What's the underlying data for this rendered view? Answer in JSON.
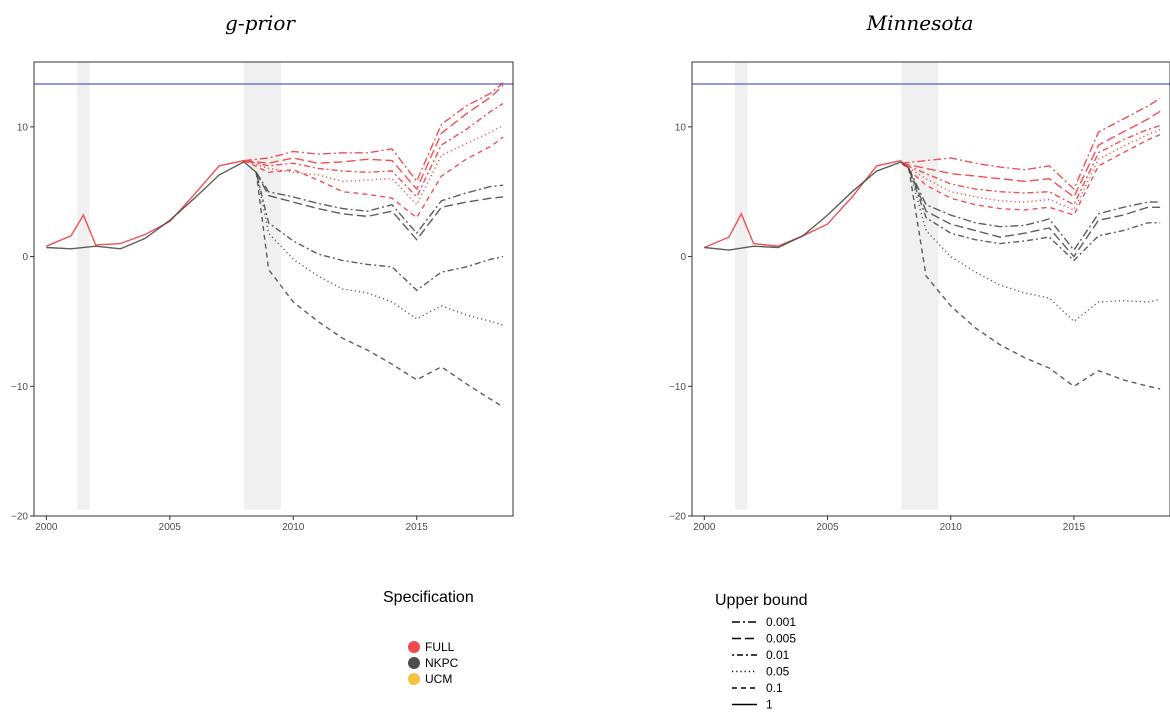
{
  "chart_data": [
    {
      "type": "line",
      "title": "g-prior",
      "xlabel": "",
      "ylabel": "",
      "xlim": [
        1999.5,
        2018.9
      ],
      "ylim": [
        -20,
        15
      ],
      "xticks": [
        2000,
        2005,
        2010,
        2015
      ],
      "yticks": [
        -20,
        -10,
        0,
        10
      ],
      "grid": false,
      "hline": {
        "y": 13.3,
        "color": "#3333aa"
      },
      "shaded_periods": [
        [
          2001.25,
          2001.75
        ],
        [
          2008.0,
          2009.5
        ]
      ],
      "shaded_ymin": -19.5,
      "series": [
        {
          "spec": "FULL",
          "bound": "1",
          "x": [
            2000,
            2001,
            2001.5,
            2002,
            2003,
            2004,
            2005,
            2006,
            2007,
            2008
          ],
          "y": [
            0.8,
            1.6,
            3.2,
            0.9,
            1.0,
            1.7,
            2.7,
            4.8,
            7.0,
            7.4
          ]
        },
        {
          "spec": "FULL",
          "bound": "0.1",
          "x": [
            2008,
            2009,
            2010,
            2011,
            2012,
            2013,
            2014,
            2015,
            2016,
            2017,
            2018,
            2018.5
          ],
          "y": [
            7.4,
            6.5,
            6.7,
            5.9,
            5.0,
            4.8,
            4.5,
            3.0,
            6.2,
            7.5,
            8.5,
            9.2
          ]
        },
        {
          "spec": "FULL",
          "bound": "0.05",
          "x": [
            2008,
            2009,
            2010,
            2011,
            2012,
            2013,
            2014,
            2015,
            2016,
            2017,
            2018,
            2018.5
          ],
          "y": [
            7.4,
            6.8,
            6.5,
            6.3,
            5.8,
            5.9,
            6.0,
            4.0,
            7.8,
            8.7,
            9.6,
            10.1
          ]
        },
        {
          "spec": "FULL",
          "bound": "0.01",
          "x": [
            2008,
            2009,
            2010,
            2011,
            2012,
            2013,
            2014,
            2015,
            2016,
            2017,
            2018,
            2018.5
          ],
          "y": [
            7.4,
            7.0,
            7.2,
            6.8,
            6.6,
            6.5,
            6.6,
            4.6,
            8.6,
            9.8,
            11.2,
            11.8
          ]
        },
        {
          "spec": "FULL",
          "bound": "0.005",
          "x": [
            2008,
            2009,
            2010,
            2011,
            2012,
            2013,
            2014,
            2015,
            2016,
            2017,
            2018,
            2018.5
          ],
          "y": [
            7.4,
            7.2,
            7.6,
            7.2,
            7.3,
            7.5,
            7.4,
            5.2,
            9.5,
            11.0,
            12.3,
            13.2
          ]
        },
        {
          "spec": "FULL",
          "bound": "0.001",
          "x": [
            2008,
            2009,
            2010,
            2011,
            2012,
            2013,
            2014,
            2015,
            2016,
            2017,
            2018,
            2018.5
          ],
          "y": [
            7.4,
            7.6,
            8.1,
            7.9,
            8.0,
            8.0,
            8.3,
            5.8,
            10.2,
            11.6,
            12.6,
            13.4
          ]
        },
        {
          "spec": "NKPC",
          "bound": "1",
          "x": [
            2000,
            2001,
            2002,
            2003,
            2004,
            2005,
            2006,
            2007,
            2008,
            2008.5
          ],
          "y": [
            0.7,
            0.6,
            0.8,
            0.6,
            1.4,
            2.8,
            4.5,
            6.3,
            7.3,
            6.5
          ]
        },
        {
          "spec": "NKPC",
          "bound": "0.1",
          "x": [
            2008.5,
            2009,
            2010,
            2011,
            2012,
            2013,
            2014,
            2015,
            2016,
            2017,
            2018,
            2018.5
          ],
          "y": [
            6.5,
            -1.0,
            -3.5,
            -5.0,
            -6.3,
            -7.2,
            -8.3,
            -9.5,
            -8.5,
            -9.8,
            -11.0,
            -11.6
          ]
        },
        {
          "spec": "NKPC",
          "bound": "0.05",
          "x": [
            2008.5,
            2009,
            2010,
            2011,
            2012,
            2013,
            2014,
            2015,
            2016,
            2017,
            2018,
            2018.5
          ],
          "y": [
            6.5,
            1.8,
            -0.2,
            -1.5,
            -2.5,
            -2.8,
            -3.5,
            -4.8,
            -3.8,
            -4.5,
            -5.0,
            -5.3
          ]
        },
        {
          "spec": "NKPC",
          "bound": "0.01",
          "x": [
            2008.5,
            2009,
            2010,
            2011,
            2012,
            2013,
            2014,
            2015,
            2016,
            2017,
            2018,
            2018.5
          ],
          "y": [
            6.5,
            2.6,
            1.2,
            0.2,
            -0.3,
            -0.6,
            -0.8,
            -2.6,
            -1.2,
            -0.8,
            -0.2,
            0.0
          ]
        },
        {
          "spec": "NKPC",
          "bound": "0.005",
          "x": [
            2008.5,
            2009,
            2010,
            2011,
            2012,
            2013,
            2014,
            2015,
            2016,
            2017,
            2018,
            2018.5
          ],
          "y": [
            6.5,
            4.7,
            4.2,
            3.7,
            3.3,
            3.1,
            3.5,
            1.3,
            3.8,
            4.2,
            4.5,
            4.6
          ]
        },
        {
          "spec": "NKPC",
          "bound": "0.001",
          "x": [
            2008.5,
            2009,
            2010,
            2011,
            2012,
            2013,
            2014,
            2015,
            2016,
            2017,
            2018,
            2018.5
          ],
          "y": [
            6.5,
            5.0,
            4.6,
            4.1,
            3.7,
            3.5,
            4.0,
            1.8,
            4.3,
            4.9,
            5.4,
            5.5
          ]
        }
      ]
    },
    {
      "type": "line",
      "title": "Minnesota",
      "xlabel": "",
      "ylabel": "",
      "xlim": [
        1999.5,
        2018.9
      ],
      "ylim": [
        -20,
        15
      ],
      "xticks": [
        2000,
        2005,
        2010,
        2015
      ],
      "yticks": [
        -20,
        -10,
        0,
        10
      ],
      "grid": false,
      "hline": {
        "y": 13.3,
        "color": "#3333aa"
      },
      "shaded_periods": [
        [
          2001.25,
          2001.75
        ],
        [
          2008.0,
          2009.5
        ]
      ],
      "shaded_ymin": -19.5,
      "series": [
        {
          "spec": "FULL",
          "bound": "1",
          "x": [
            2000,
            2001,
            2001.5,
            2002,
            2003,
            2004,
            2005,
            2006,
            2007,
            2008
          ],
          "y": [
            0.7,
            1.5,
            3.3,
            1.0,
            0.8,
            1.6,
            2.5,
            4.6,
            7.0,
            7.4
          ]
        },
        {
          "spec": "FULL",
          "bound": "0.1",
          "x": [
            2008,
            2009,
            2010,
            2011,
            2012,
            2013,
            2014,
            2015,
            2016,
            2017,
            2018,
            2018.5
          ],
          "y": [
            7.2,
            5.5,
            4.5,
            4.0,
            3.7,
            3.6,
            3.8,
            3.2,
            7.0,
            8.0,
            9.0,
            9.4
          ]
        },
        {
          "spec": "FULL",
          "bound": "0.05",
          "x": [
            2008,
            2009,
            2010,
            2011,
            2012,
            2013,
            2014,
            2015,
            2016,
            2017,
            2018,
            2018.5
          ],
          "y": [
            7.2,
            6.0,
            5.0,
            4.6,
            4.3,
            4.2,
            4.4,
            3.6,
            7.5,
            8.5,
            9.4,
            9.8
          ]
        },
        {
          "spec": "FULL",
          "bound": "0.01",
          "x": [
            2008,
            2009,
            2010,
            2011,
            2012,
            2013,
            2014,
            2015,
            2016,
            2017,
            2018,
            2018.5
          ],
          "y": [
            7.2,
            6.4,
            5.6,
            5.2,
            5.0,
            4.9,
            5.0,
            4.0,
            8.0,
            9.0,
            9.8,
            10.1
          ]
        },
        {
          "spec": "FULL",
          "bound": "0.005",
          "x": [
            2008,
            2009,
            2010,
            2011,
            2012,
            2013,
            2014,
            2015,
            2016,
            2017,
            2018,
            2018.5
          ],
          "y": [
            7.2,
            6.8,
            6.4,
            6.2,
            6.0,
            5.8,
            6.0,
            4.6,
            8.6,
            9.6,
            10.6,
            11.2
          ]
        },
        {
          "spec": "FULL",
          "bound": "0.001",
          "x": [
            2008,
            2009,
            2010,
            2011,
            2012,
            2013,
            2014,
            2015,
            2016,
            2017,
            2018,
            2018.5
          ],
          "y": [
            7.2,
            7.4,
            7.6,
            7.2,
            6.9,
            6.7,
            7.0,
            5.2,
            9.6,
            10.6,
            11.6,
            12.2
          ]
        },
        {
          "spec": "NKPC",
          "bound": "1",
          "x": [
            2000,
            2001,
            2002,
            2003,
            2004,
            2005,
            2006,
            2007,
            2008,
            2008.3
          ],
          "y": [
            0.7,
            0.5,
            0.8,
            0.7,
            1.6,
            3.2,
            5.0,
            6.6,
            7.3,
            6.8
          ]
        },
        {
          "spec": "NKPC",
          "bound": "0.1",
          "x": [
            2008.3,
            2009,
            2010,
            2011,
            2012,
            2013,
            2014,
            2015,
            2016,
            2017,
            2018,
            2018.5
          ],
          "y": [
            6.8,
            -1.5,
            -3.8,
            -5.5,
            -6.8,
            -7.8,
            -8.6,
            -10.0,
            -8.8,
            -9.5,
            -10.0,
            -10.2
          ]
        },
        {
          "spec": "NKPC",
          "bound": "0.05",
          "x": [
            2008.3,
            2009,
            2010,
            2011,
            2012,
            2013,
            2014,
            2015,
            2016,
            2017,
            2018,
            2018.5
          ],
          "y": [
            6.8,
            2.0,
            0.0,
            -1.2,
            -2.2,
            -2.8,
            -3.2,
            -5.0,
            -3.5,
            -3.4,
            -3.5,
            -3.3
          ]
        },
        {
          "spec": "NKPC",
          "bound": "0.01",
          "x": [
            2008.3,
            2009,
            2010,
            2011,
            2012,
            2013,
            2014,
            2015,
            2016,
            2017,
            2018,
            2018.5
          ],
          "y": [
            6.8,
            3.0,
            1.8,
            1.3,
            1.0,
            1.2,
            1.5,
            -0.3,
            1.6,
            2.0,
            2.6,
            2.6
          ]
        },
        {
          "spec": "NKPC",
          "bound": "0.005",
          "x": [
            2008.3,
            2009,
            2010,
            2011,
            2012,
            2013,
            2014,
            2015,
            2016,
            2017,
            2018,
            2018.5
          ],
          "y": [
            6.8,
            3.5,
            2.5,
            2.0,
            1.5,
            1.8,
            2.2,
            0.0,
            2.8,
            3.2,
            3.8,
            3.8
          ]
        },
        {
          "spec": "NKPC",
          "bound": "0.001",
          "x": [
            2008.3,
            2009,
            2010,
            2011,
            2012,
            2013,
            2014,
            2015,
            2016,
            2017,
            2018,
            2018.5
          ],
          "y": [
            6.8,
            4.0,
            3.2,
            2.6,
            2.3,
            2.4,
            2.9,
            0.5,
            3.3,
            3.8,
            4.2,
            4.2
          ]
        }
      ]
    }
  ],
  "legend_spec": {
    "title": "Specification",
    "items": [
      {
        "label": "FULL",
        "color": "#f0484b"
      },
      {
        "label": "NKPC",
        "color": "#4d4d4d"
      },
      {
        "label": "UCM",
        "color": "#f5c242"
      }
    ]
  },
  "legend_bound": {
    "title": "Upper bound",
    "items": [
      {
        "label": "0.001",
        "dash": "8 3 2 3"
      },
      {
        "label": "0.005",
        "dash": "9 4"
      },
      {
        "label": "0.01",
        "dash": "2 3 6 3"
      },
      {
        "label": "0.05",
        "dash": "1.2 3"
      },
      {
        "label": "0.1",
        "dash": "5 4"
      },
      {
        "label": "1",
        "dash": ""
      }
    ]
  }
}
